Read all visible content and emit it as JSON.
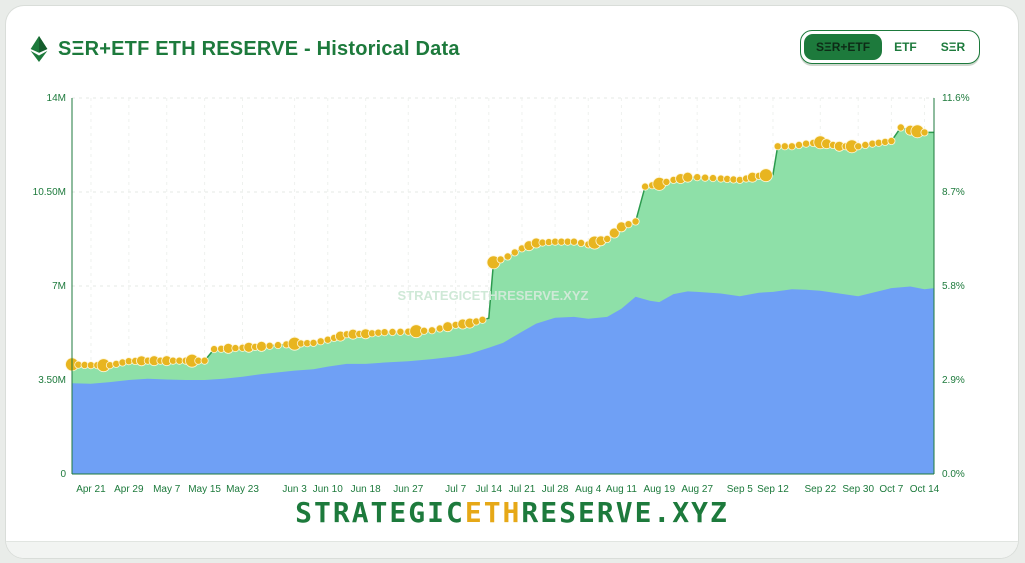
{
  "header": {
    "title": "SΞR+ETF ETH RESERVE - Historical Data",
    "logo": "ethereum-diamond-icon"
  },
  "toggle": {
    "options": [
      "SΞR+ETF",
      "ETF",
      "SΞR"
    ],
    "selected": "SΞR+ETF"
  },
  "watermark": "STRATEGICETHRESERVE.XYZ",
  "footer": {
    "part1": "STRATEGIC",
    "part2": "ETH",
    "part3": "RESERVE.XYZ"
  },
  "colors": {
    "accent": "#1d7a3c",
    "etf_fill": "#6fa0f5",
    "ser_fill": "#8ee0a8",
    "marker": "#e8b520"
  },
  "chart_data": {
    "type": "area",
    "stacked": true,
    "x_ticks": [
      "Apr 21",
      "Apr 29",
      "May 7",
      "May 15",
      "May 23",
      "Jun 3",
      "Jun 10",
      "Jun 18",
      "Jun 27",
      "Jul 7",
      "Jul 14",
      "Jul 21",
      "Jul 28",
      "Aug 4",
      "Aug 11",
      "Aug 19",
      "Aug 27",
      "Sep 5",
      "Sep 12",
      "Sep 22",
      "Sep 30",
      "Oct 7",
      "Oct 14"
    ],
    "y_left": {
      "ticks": [
        "0",
        "3.50M",
        "7M",
        "10.50M",
        "14M"
      ],
      "range": [
        0,
        14000000
      ]
    },
    "y_right": {
      "ticks": [
        "0.0%",
        "2.9%",
        "5.8%",
        "8.7%",
        "11.6%"
      ],
      "range": [
        0,
        11.6
      ]
    },
    "grid": true,
    "x_range": [
      "Apr 17",
      "Oct 16"
    ],
    "series": [
      {
        "name": "ETF",
        "x": [
          "Apr 17",
          "Apr 21",
          "Apr 25",
          "Apr 29",
          "May 3",
          "May 7",
          "May 11",
          "May 15",
          "May 19",
          "May 23",
          "May 27",
          "Jun 3",
          "Jun 7",
          "Jun 10",
          "Jun 14",
          "Jun 18",
          "Jun 22",
          "Jun 27",
          "Jul 2",
          "Jul 7",
          "Jul 10",
          "Jul 14",
          "Jul 17",
          "Jul 21",
          "Jul 24",
          "Jul 28",
          "Aug 1",
          "Aug 4",
          "Aug 8",
          "Aug 11",
          "Aug 14",
          "Aug 17",
          "Aug 19",
          "Aug 22",
          "Aug 25",
          "Aug 27",
          "Sep 1",
          "Sep 5",
          "Sep 9",
          "Sep 12",
          "Sep 16",
          "Sep 19",
          "Sep 22",
          "Sep 26",
          "Sep 30",
          "Oct 3",
          "Oct 7",
          "Oct 11",
          "Oct 14",
          "Oct 16"
        ],
        "values": [
          3.38,
          3.36,
          3.42,
          3.5,
          3.55,
          3.52,
          3.5,
          3.5,
          3.55,
          3.62,
          3.72,
          3.85,
          3.9,
          4.0,
          4.1,
          4.1,
          4.15,
          4.2,
          4.28,
          4.38,
          4.48,
          4.7,
          4.88,
          5.3,
          5.6,
          5.82,
          5.85,
          5.78,
          5.85,
          6.15,
          6.6,
          6.45,
          6.4,
          6.7,
          6.8,
          6.78,
          6.72,
          6.62,
          6.75,
          6.78,
          6.88,
          6.86,
          6.82,
          6.72,
          6.62,
          6.75,
          6.92,
          6.98,
          6.88,
          6.92
        ]
      },
      {
        "name": "SΞR+ETF",
        "x": [
          "Apr 17",
          "Apr 21",
          "Apr 25",
          "Apr 29",
          "May 3",
          "May 7",
          "May 11",
          "May 15",
          "May 17",
          "May 23",
          "May 27",
          "Jun 3",
          "Jun 7",
          "Jun 10",
          "Jun 14",
          "Jun 18",
          "Jun 22",
          "Jun 27",
          "Jul 2",
          "Jul 7",
          "Jul 10",
          "Jul 14",
          "Jul 15",
          "Jul 18",
          "Jul 21",
          "Jul 24",
          "Jul 28",
          "Aug 1",
          "Aug 4",
          "Aug 8",
          "Aug 11",
          "Aug 14",
          "Aug 16",
          "Aug 19",
          "Aug 22",
          "Aug 25",
          "Aug 27",
          "Sep 1",
          "Sep 5",
          "Sep 9",
          "Sep 12",
          "Sep 13",
          "Sep 16",
          "Sep 19",
          "Sep 22",
          "Sep 26",
          "Sep 30",
          "Oct 3",
          "Oct 7",
          "Oct 9",
          "Oct 11",
          "Oct 14",
          "Oct 16"
        ],
        "values": [
          4.08,
          4.05,
          4.05,
          4.2,
          4.22,
          4.22,
          4.22,
          4.22,
          4.65,
          4.7,
          4.75,
          4.85,
          4.88,
          5.0,
          5.2,
          5.22,
          5.28,
          5.3,
          5.35,
          5.55,
          5.62,
          5.8,
          7.88,
          8.1,
          8.4,
          8.6,
          8.65,
          8.65,
          8.55,
          8.75,
          9.2,
          9.4,
          10.7,
          10.8,
          10.95,
          11.05,
          11.05,
          11.0,
          10.95,
          11.1,
          11.15,
          12.2,
          12.2,
          12.3,
          12.35,
          12.2,
          12.2,
          12.3,
          12.4,
          12.9,
          12.8,
          12.72,
          12.72
        ]
      }
    ]
  }
}
